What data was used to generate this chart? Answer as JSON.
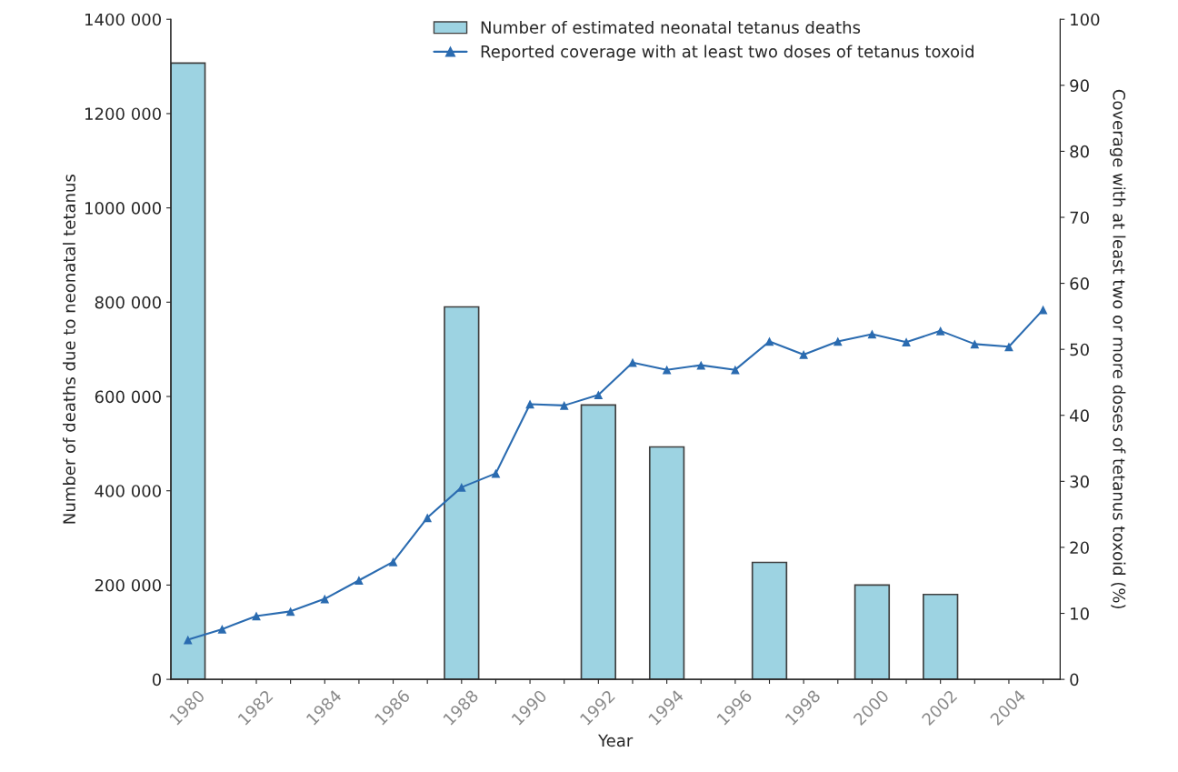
{
  "chart_data": {
    "type": "bar",
    "xlabel": "Year",
    "ylabel": "Number of deaths due to neonatal tetanus",
    "y2label": "Coverage with at least two or more doses of tetanus toxoid (%)",
    "categories": [
      "1980",
      null,
      "1982",
      null,
      "1984",
      null,
      "1986",
      null,
      "1988",
      null,
      "1990",
      null,
      "1992",
      null,
      "1994",
      null,
      "1996",
      null,
      "1998",
      null,
      "2000",
      null,
      "2002",
      null,
      "2004",
      null
    ],
    "series": [
      {
        "name": "Number of estimated neonatal tetanus deaths",
        "color": "#9dd3e2",
        "values": [
          1307000,
          null,
          null,
          null,
          null,
          null,
          null,
          null,
          790000,
          null,
          null,
          null,
          582000,
          null,
          493000,
          null,
          null,
          248000,
          null,
          null,
          200000,
          null,
          180000,
          null,
          null,
          null
        ]
      },
      {
        "name": "Reported coverage with at least two doses of tetanus toxoid",
        "type": "line",
        "axis": "y2",
        "color": "#2a6bb0",
        "marker": "triangle",
        "values": [
          6.0,
          7.6,
          9.6,
          10.3,
          12.2,
          15.0,
          17.8,
          24.5,
          29.1,
          31.2,
          41.7,
          41.5,
          43.1,
          48.0,
          46.9,
          47.6,
          46.9,
          51.2,
          49.2,
          51.2,
          52.3,
          51.1,
          52.8,
          50.8,
          50.4,
          56.0
        ]
      }
    ],
    "ylim": [
      0,
      1400000
    ],
    "yticks": [
      {
        "value": 0,
        "label": "0"
      },
      {
        "value": 200000,
        "label": "200 000"
      },
      {
        "value": 400000,
        "label": "400 000"
      },
      {
        "value": 600000,
        "label": "600 000"
      },
      {
        "value": 800000,
        "label": "800 000"
      },
      {
        "value": 1000000,
        "label": "1000 000"
      },
      {
        "value": 1200000,
        "label": "1200 000"
      },
      {
        "value": 1400000,
        "label": "1400 000"
      }
    ],
    "y2lim": [
      0,
      100
    ],
    "y2ticks": [
      0,
      10,
      20,
      30,
      40,
      50,
      60,
      70,
      80,
      90,
      100
    ],
    "legend": "top",
    "grid": false
  }
}
